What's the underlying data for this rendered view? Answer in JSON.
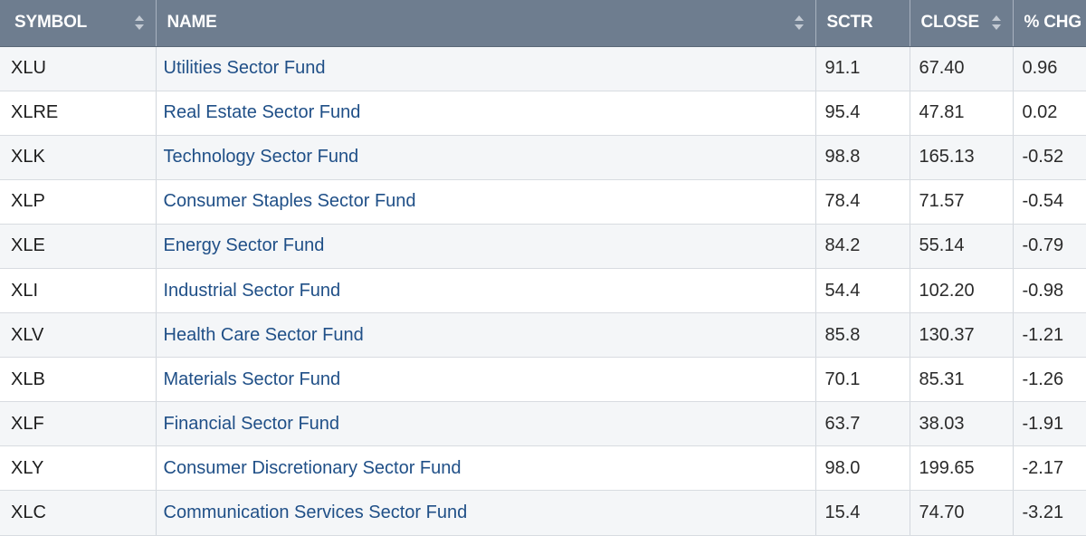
{
  "table": {
    "columns": [
      {
        "key": "symbol",
        "label": "SYMBOL",
        "sortable": true
      },
      {
        "key": "name",
        "label": "NAME",
        "sortable": true
      },
      {
        "key": "sctr",
        "label": "SCTR",
        "sortable": false
      },
      {
        "key": "close",
        "label": "CLOSE",
        "sortable": true
      },
      {
        "key": "chg",
        "label": "% CHG",
        "sortable": false
      }
    ],
    "icons": {
      "sort": "sort-arrows-icon"
    },
    "colors": {
      "header_bg": "#6e7d8f",
      "link": "#1f4f87",
      "row_alt": "#f4f6f8"
    },
    "rows": [
      {
        "symbol": "XLU",
        "name": "Utilities Sector Fund",
        "sctr": "91.1",
        "close": "67.40",
        "chg": "0.96"
      },
      {
        "symbol": "XLRE",
        "name": "Real Estate Sector Fund",
        "sctr": "95.4",
        "close": "47.81",
        "chg": "0.02"
      },
      {
        "symbol": "XLK",
        "name": "Technology Sector Fund",
        "sctr": "98.8",
        "close": "165.13",
        "chg": "-0.52"
      },
      {
        "symbol": "XLP",
        "name": "Consumer Staples Sector Fund",
        "sctr": "78.4",
        "close": "71.57",
        "chg": "-0.54"
      },
      {
        "symbol": "XLE",
        "name": "Energy Sector Fund",
        "sctr": "84.2",
        "close": "55.14",
        "chg": "-0.79"
      },
      {
        "symbol": "XLI",
        "name": "Industrial Sector Fund",
        "sctr": "54.4",
        "close": "102.20",
        "chg": "-0.98"
      },
      {
        "symbol": "XLV",
        "name": "Health Care Sector Fund",
        "sctr": "85.8",
        "close": "130.37",
        "chg": "-1.21"
      },
      {
        "symbol": "XLB",
        "name": "Materials Sector Fund",
        "sctr": "70.1",
        "close": "85.31",
        "chg": "-1.26"
      },
      {
        "symbol": "XLF",
        "name": "Financial Sector Fund",
        "sctr": "63.7",
        "close": "38.03",
        "chg": "-1.91"
      },
      {
        "symbol": "XLY",
        "name": "Consumer Discretionary Sector Fund",
        "sctr": "98.0",
        "close": "199.65",
        "chg": "-2.17"
      },
      {
        "symbol": "XLC",
        "name": "Communication Services Sector Fund",
        "sctr": "15.4",
        "close": "74.70",
        "chg": "-3.21"
      }
    ]
  }
}
